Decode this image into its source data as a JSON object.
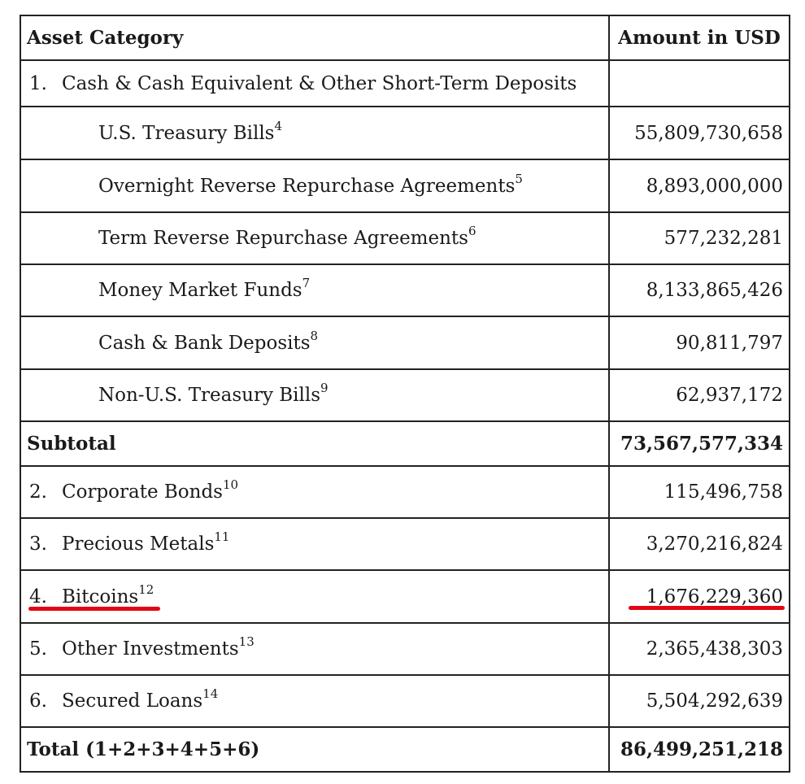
{
  "header": {
    "category": "Asset Category",
    "amount": "Amount in USD"
  },
  "section1": {
    "num": "1.",
    "label": "Cash & Cash Equivalent & Other Short-Term Deposits"
  },
  "cash_items": [
    {
      "label": "U.S. Treasury Bills",
      "note": "4",
      "amount": "55,809,730,658"
    },
    {
      "label": "Overnight Reverse Repurchase Agreements",
      "note": "5",
      "amount": "8,893,000,000"
    },
    {
      "label": "Term Reverse Repurchase Agreements",
      "note": "6",
      "amount": "577,232,281"
    },
    {
      "label": "Money Market Funds",
      "note": "7",
      "amount": "8,133,865,426"
    },
    {
      "label": "Cash & Bank Deposits",
      "note": "8",
      "amount": "90,811,797"
    },
    {
      "label": "Non-U.S. Treasury Bills",
      "note": "9",
      "amount": "62,937,172"
    }
  ],
  "subtotal": {
    "label": "Subtotal",
    "amount": "73,567,577,334"
  },
  "other_items": [
    {
      "num": "2.",
      "label": "Corporate Bonds",
      "note": "10",
      "amount": "115,496,758"
    },
    {
      "num": "3.",
      "label": "Precious Metals",
      "note": "11",
      "amount": "3,270,216,824"
    },
    {
      "num": "4.",
      "label": "Bitcoins",
      "note": "12",
      "amount": "1,676,229,360",
      "highlighted": true
    },
    {
      "num": "5.",
      "label": "Other Investments",
      "note": "13",
      "amount": "2,365,438,303"
    },
    {
      "num": "6.",
      "label": "Secured Loans",
      "note": "14",
      "amount": "5,504,292,639"
    }
  ],
  "total": {
    "label": "Total (1+2+3+4+5+6)",
    "amount": "86,499,251,218"
  },
  "colors": {
    "highlight_underline": "#e30613",
    "border": "#222222"
  }
}
